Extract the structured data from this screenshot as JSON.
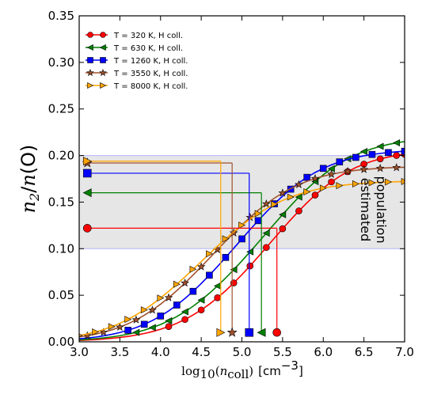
{
  "chart_data": {
    "type": "line",
    "xlabel": "log10(ncoll) [cm−3]",
    "xlabel_parts": {
      "log": "log",
      "log_sub": "10",
      "open": "(",
      "n": "n",
      "n_sub": "coll",
      "close": ")",
      "unit": "[cm",
      "unit_exp": "−3",
      "unit_close": "]"
    },
    "ylabel": "n2/n(O)",
    "ylabel_parts": {
      "n": "n",
      "sub": "2",
      "slash": "/",
      "n2": "n",
      "open": "(",
      "O": "O",
      "close": ")"
    },
    "xlim": [
      3.0,
      7.0
    ],
    "ylim": [
      0.0,
      0.35
    ],
    "xticks": [
      "3.0",
      "3.5",
      "4.0",
      "4.5",
      "5.0",
      "5.5",
      "6.0",
      "6.5",
      "7.0"
    ],
    "yticks": [
      "0.00",
      "0.05",
      "0.10",
      "0.15",
      "0.20",
      "0.25",
      "0.30",
      "0.35"
    ],
    "x": [
      3.0,
      3.1,
      3.2,
      3.3,
      3.4,
      3.5,
      3.6,
      3.7,
      3.8,
      3.9,
      4.0,
      4.1,
      4.2,
      4.3,
      4.4,
      4.5,
      4.6,
      4.7,
      4.8,
      4.9,
      5.0,
      5.1,
      5.2,
      5.3,
      5.4,
      5.5,
      5.6,
      5.7,
      5.8,
      5.9,
      6.0,
      6.1,
      6.2,
      6.3,
      6.4,
      6.5,
      6.6,
      6.7,
      6.8,
      6.9,
      7.0
    ],
    "band": {
      "ymin": 0.1,
      "ymax": 0.2,
      "label_line1": "estimated",
      "label_line2": "population",
      "color": "#e6e6e6",
      "edge_color": "#b3b3ff"
    },
    "legend_position": "top-left",
    "series": [
      {
        "name": "T = 320 K, H coll.",
        "color": "#ff0000",
        "marker": "circle",
        "values": [
          0.0015,
          0.0019,
          0.0024,
          0.003,
          0.0038,
          0.0047,
          0.0058,
          0.0072,
          0.0089,
          0.011,
          0.0135,
          0.0164,
          0.0199,
          0.024,
          0.0288,
          0.0342,
          0.0404,
          0.0473,
          0.0549,
          0.0632,
          0.0721,
          0.0815,
          0.0913,
          0.1013,
          0.1114,
          0.1214,
          0.1311,
          0.1405,
          0.1493,
          0.1575,
          0.165,
          0.1717,
          0.1776,
          0.1827,
          0.1871,
          0.1908,
          0.1939,
          0.1964,
          0.1984,
          0.2001,
          0.2014
        ],
        "marker_x": [
          4.1,
          4.3,
          4.5,
          4.7,
          4.9,
          5.1,
          5.3,
          5.5,
          5.7,
          5.9,
          6.1,
          6.3,
          6.5,
          6.7,
          6.9,
          7.0
        ],
        "estimate": {
          "y": 0.122,
          "x": 5.43,
          "label_x": 3.1
        }
      },
      {
        "name": "T = 630 K, H coll.",
        "color": "#008000",
        "marker": "triangle-left",
        "values": [
          0.0021,
          0.0027,
          0.0034,
          0.0042,
          0.0053,
          0.0066,
          0.0082,
          0.0101,
          0.0125,
          0.0153,
          0.0186,
          0.0226,
          0.0271,
          0.0323,
          0.0382,
          0.0448,
          0.0521,
          0.06,
          0.0685,
          0.0775,
          0.0869,
          0.0966,
          0.1066,
          0.1167,
          0.1267,
          0.1366,
          0.1462,
          0.1554,
          0.164,
          0.172,
          0.1793,
          0.1858,
          0.1915,
          0.1965,
          0.2007,
          0.2043,
          0.2073,
          0.2098,
          0.2119,
          0.2136,
          0.215
        ],
        "marker_x": [
          3.7,
          3.9,
          4.1,
          4.3,
          4.5,
          4.7,
          4.9,
          5.1,
          5.3,
          5.5,
          5.7,
          5.9,
          6.1,
          6.3,
          6.5,
          6.7,
          6.9
        ],
        "estimate": {
          "y": 0.16,
          "x": 5.24,
          "label_x": 3.1
        }
      },
      {
        "name": "T = 1260 K, H coll.",
        "color": "#0000ff",
        "marker": "square",
        "values": [
          0.0032,
          0.0041,
          0.0051,
          0.0064,
          0.008,
          0.01,
          0.0124,
          0.0153,
          0.0188,
          0.0229,
          0.0277,
          0.0332,
          0.0395,
          0.0465,
          0.0542,
          0.0626,
          0.0715,
          0.0809,
          0.0906,
          0.1005,
          0.1105,
          0.1204,
          0.1301,
          0.1394,
          0.1482,
          0.1564,
          0.1639,
          0.1707,
          0.1766,
          0.1818,
          0.1862,
          0.19,
          0.1932,
          0.1958,
          0.198,
          0.1997,
          0.2012,
          0.2023,
          0.2032,
          0.204,
          0.2046
        ],
        "marker_x": [
          3.6,
          3.8,
          4.0,
          4.2,
          4.4,
          4.6,
          4.8,
          5.0,
          5.2,
          5.4,
          5.6,
          5.8,
          6.0,
          6.2,
          6.4,
          6.6,
          6.8,
          7.0
        ],
        "estimate": {
          "y": 0.181,
          "x": 5.09,
          "label_x": 3.1
        }
      },
      {
        "name": "T = 3550 K, H coll.",
        "color": "#a0522d",
        "marker": "star",
        "values": [
          0.0052,
          0.0066,
          0.0082,
          0.0103,
          0.0128,
          0.0158,
          0.0194,
          0.0236,
          0.0285,
          0.0341,
          0.0404,
          0.0474,
          0.055,
          0.0631,
          0.0717,
          0.0806,
          0.0897,
          0.0989,
          0.108,
          0.1169,
          0.1255,
          0.1336,
          0.1412,
          0.1481,
          0.1543,
          0.1598,
          0.1646,
          0.1688,
          0.1723,
          0.1753,
          0.1778,
          0.1799,
          0.1816,
          0.183,
          0.1841,
          0.185,
          0.1857,
          0.1863,
          0.1868,
          0.1871,
          0.1874
        ],
        "marker_x": [
          3.1,
          3.3,
          3.5,
          3.7,
          3.9,
          4.1,
          4.3,
          4.5,
          4.7,
          4.9,
          5.1,
          5.3,
          5.5,
          5.7,
          5.9,
          6.1,
          6.3,
          6.5,
          6.7,
          6.9
        ],
        "estimate": {
          "y": 0.192,
          "x": 4.88,
          "label_x": 3.1
        }
      },
      {
        "name": "T = 8000 K, H coll.",
        "color": "#ffa500",
        "marker": "triangle-right",
        "values": [
          0.0068,
          0.0085,
          0.0106,
          0.0132,
          0.0163,
          0.0199,
          0.0241,
          0.0289,
          0.0343,
          0.0404,
          0.047,
          0.0542,
          0.0618,
          0.0697,
          0.0779,
          0.0862,
          0.0945,
          0.1027,
          0.1106,
          0.1182,
          0.1252,
          0.1318,
          0.1377,
          0.143,
          0.1477,
          0.1518,
          0.1554,
          0.1584,
          0.161,
          0.1632,
          0.165,
          0.1665,
          0.1677,
          0.1687,
          0.1696,
          0.1702,
          0.1708,
          0.1712,
          0.1716,
          0.1719,
          0.1721
        ],
        "marker_x": [
          3.0,
          3.2,
          3.4,
          3.6,
          3.8,
          4.0,
          4.2,
          4.4,
          4.6,
          4.8,
          5.0,
          5.2,
          5.4,
          5.6,
          5.8,
          6.0,
          6.2,
          6.4,
          6.6,
          6.8,
          7.0
        ],
        "estimate": {
          "y": 0.194,
          "x": 4.74,
          "label_x": 3.1
        }
      }
    ]
  }
}
